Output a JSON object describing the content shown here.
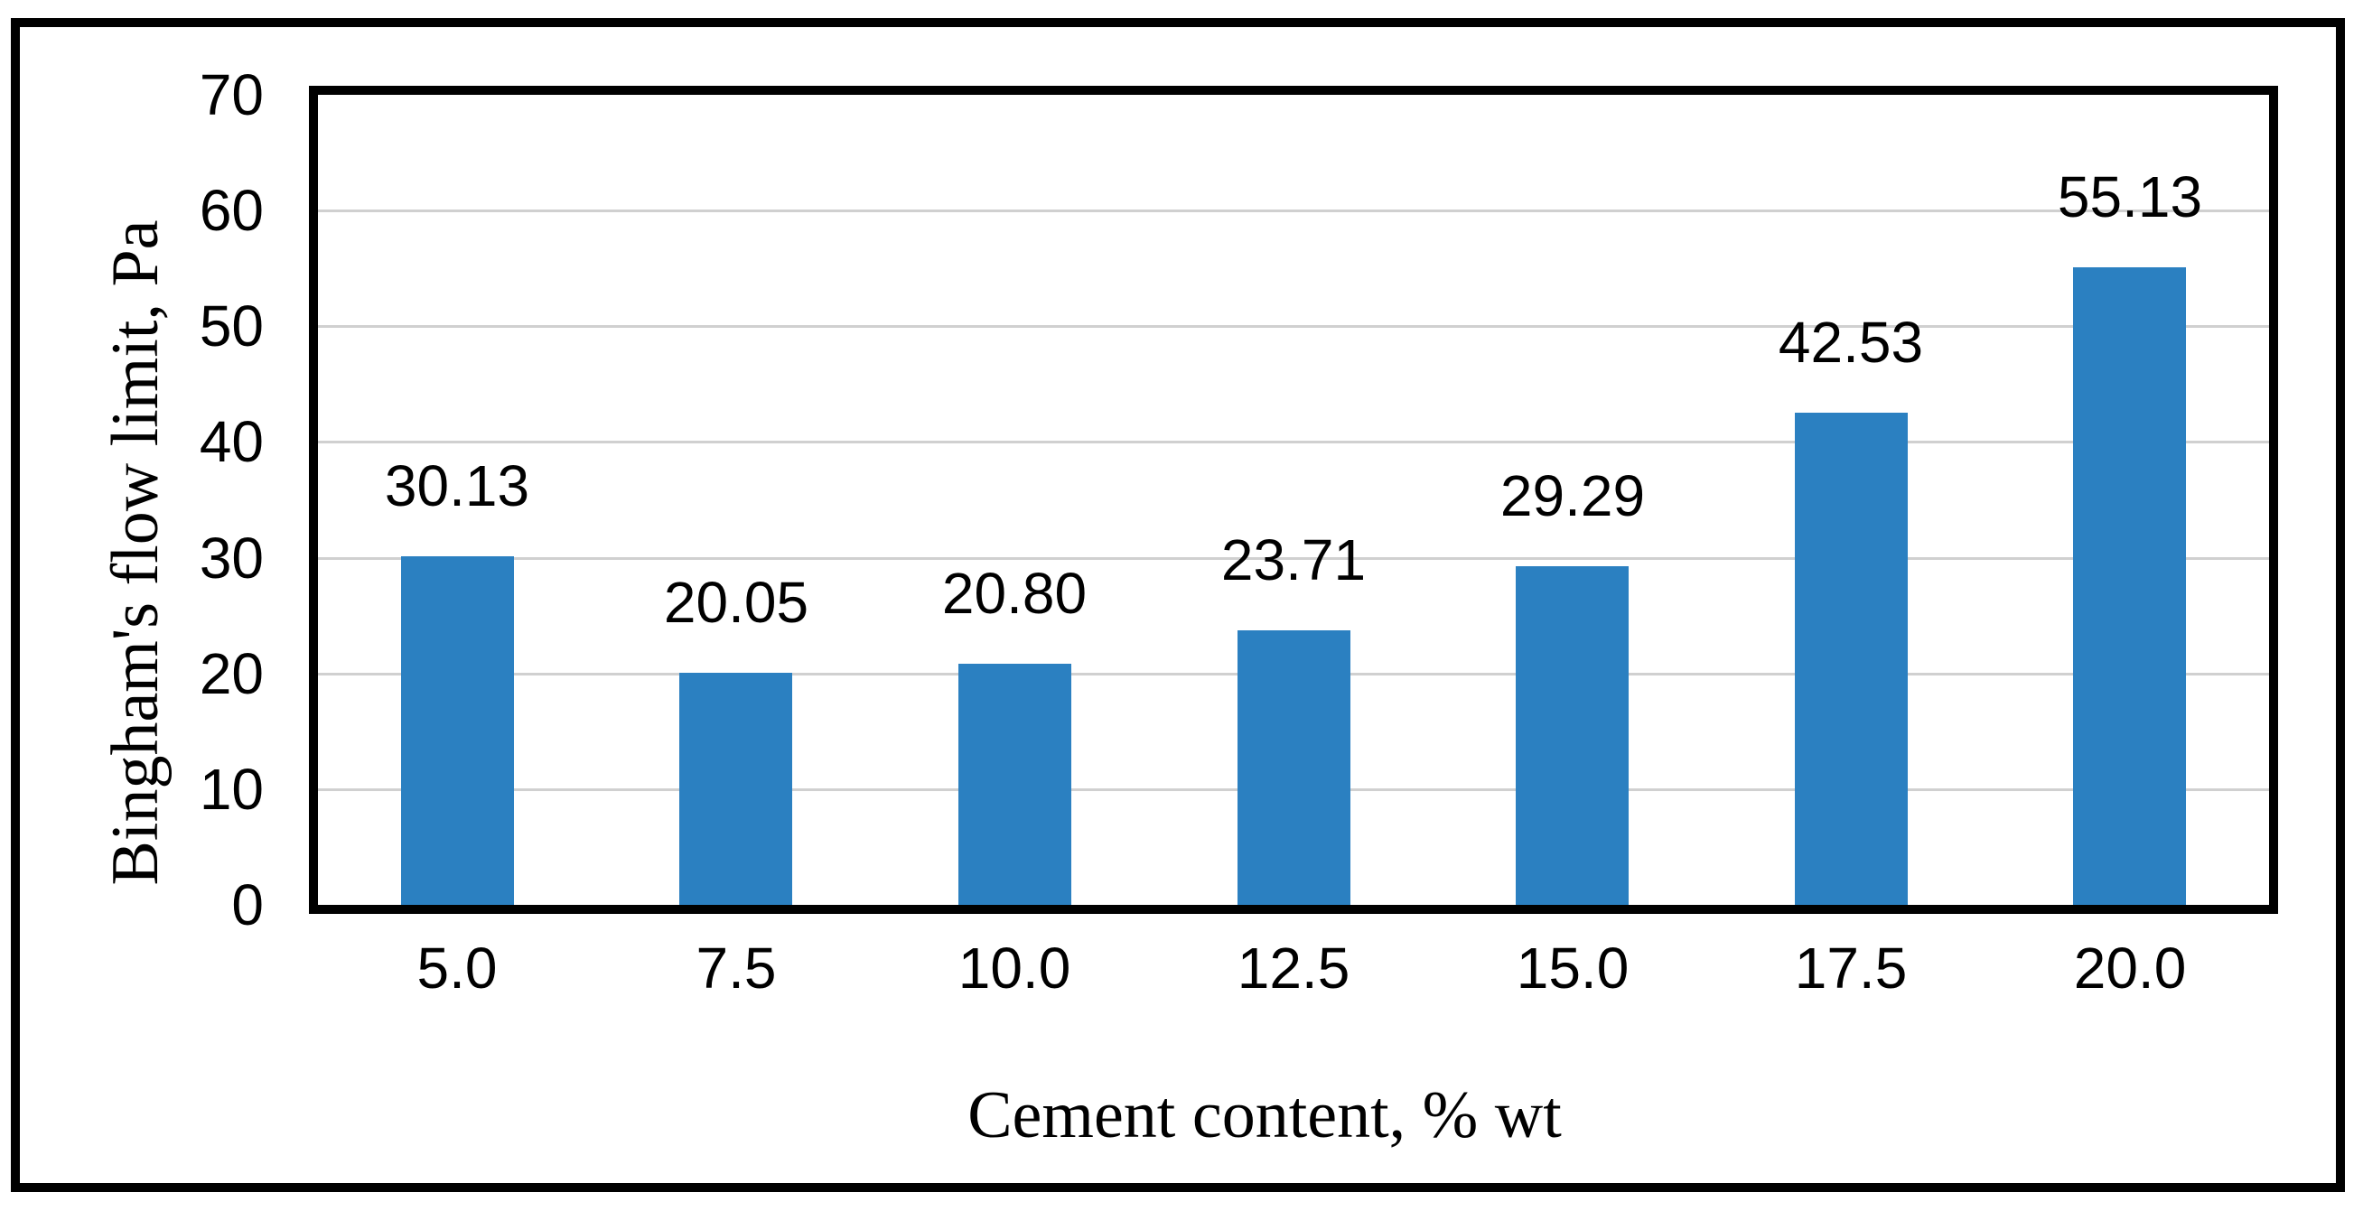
{
  "figure": {
    "background_color": "#ffffff",
    "border_color": "#000000"
  },
  "chart_data": {
    "type": "bar",
    "title": "",
    "categories": [
      "5.0",
      "7.5",
      "10.0",
      "12.5",
      "15.0",
      "17.5",
      "20.0"
    ],
    "values": [
      30.13,
      20.05,
      20.8,
      23.71,
      29.29,
      42.53,
      55.13
    ],
    "data_labels": [
      "30.13",
      "20.05",
      "20.80",
      "23.71",
      "29.29",
      "42.53",
      "55.13"
    ],
    "xlabel": "Cement content, % wt",
    "ylabel": "Bingham's flow limit, Pa",
    "ylim": [
      0,
      70
    ],
    "ytick_interval": 10,
    "ytick_labels": [
      "0",
      "10",
      "20",
      "30",
      "40",
      "50",
      "60",
      "70"
    ],
    "grid": "horizontal-only",
    "legend_position": "none",
    "bar_color": "#2b80c1",
    "gridline_color": "#d0d0d0",
    "axis_color": "#000000",
    "text_color": "#000000"
  }
}
